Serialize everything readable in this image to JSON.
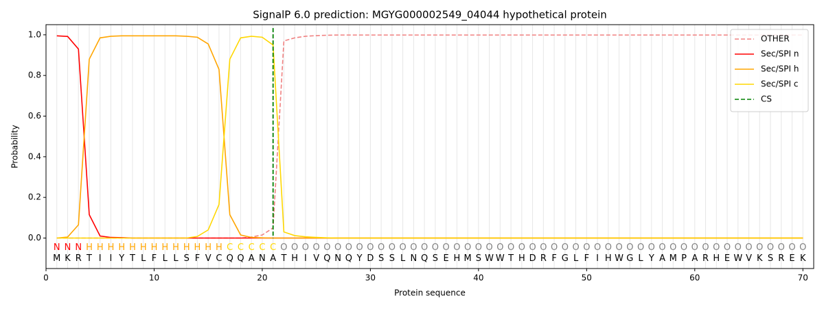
{
  "chart_data": {
    "type": "line",
    "title": "SignalP 6.0 prediction: MGYG000002549_04044 hypothetical protein",
    "x_label": "Protein sequence",
    "y_label": "Probability",
    "xlim": [
      0,
      71
    ],
    "ylim": [
      -0.15,
      1.05
    ],
    "xticks": [
      0,
      10,
      20,
      30,
      40,
      50,
      60,
      70
    ],
    "yticks": [
      {
        "value": 0,
        "label": "0.0"
      },
      {
        "value": 0.2,
        "label": "0.2"
      },
      {
        "value": 0.4,
        "label": "0.4"
      },
      {
        "value": 0.6,
        "label": "0.6"
      },
      {
        "value": 0.8,
        "label": "0.8"
      },
      {
        "value": 1,
        "label": "1.0"
      }
    ],
    "grid": true,
    "legend": "upper right",
    "x": [
      1,
      2,
      3,
      4,
      5,
      6,
      7,
      8,
      9,
      10,
      11,
      12,
      13,
      14,
      15,
      16,
      17,
      18,
      19,
      20,
      21,
      22,
      23,
      24,
      25,
      26,
      27,
      28,
      29,
      30,
      31,
      32,
      33,
      34,
      35,
      36,
      37,
      38,
      39,
      40,
      41,
      42,
      43,
      44,
      45,
      46,
      47,
      48,
      49,
      50,
      51,
      52,
      53,
      54,
      55,
      56,
      57,
      58,
      59,
      60,
      61,
      62,
      63,
      64,
      65,
      66,
      67,
      68,
      69,
      70
    ],
    "residues": [
      "M",
      "K",
      "R",
      "T",
      "I",
      "I",
      "Y",
      "T",
      "L",
      "F",
      "L",
      "L",
      "S",
      "F",
      "V",
      "C",
      "Q",
      "Q",
      "A",
      "N",
      "A",
      "T",
      "H",
      "I",
      "V",
      "Q",
      "N",
      "Q",
      "Y",
      "D",
      "S",
      "S",
      "L",
      "N",
      "Q",
      "S",
      "E",
      "H",
      "M",
      "S",
      "W",
      "W",
      "T",
      "H",
      "D",
      "R",
      "F",
      "G",
      "L",
      "F",
      "I",
      "H",
      "W",
      "G",
      "L",
      "Y",
      "A",
      "M",
      "P",
      "A",
      "R",
      "H",
      "E",
      "W",
      "V",
      "K",
      "S",
      "R",
      "E",
      "K"
    ],
    "labels": [
      "N",
      "N",
      "N",
      "H",
      "H",
      "H",
      "H",
      "H",
      "H",
      "H",
      "H",
      "H",
      "H",
      "H",
      "H",
      "H",
      "C",
      "C",
      "C",
      "C",
      "C",
      "O",
      "O",
      "O",
      "O",
      "O",
      "O",
      "O",
      "O",
      "O",
      "O",
      "O",
      "O",
      "O",
      "O",
      "O",
      "O",
      "O",
      "O",
      "O",
      "O",
      "O",
      "O",
      "O",
      "O",
      "O",
      "O",
      "O",
      "O",
      "O",
      "O",
      "O",
      "O",
      "O",
      "O",
      "O",
      "O",
      "O",
      "O",
      "O",
      "O",
      "O",
      "O",
      "O",
      "O",
      "O",
      "O",
      "O",
      "O",
      "O"
    ],
    "label_colors": {
      "N": "#ff0000",
      "H": "#ffa500",
      "C": "#ffd700",
      "O": "#808080"
    },
    "series": [
      {
        "name": "OTHER",
        "color": "#f08080",
        "dash": true,
        "values": [
          0,
          0,
          0,
          0,
          0,
          0,
          0,
          0,
          0,
          0,
          0,
          0,
          0,
          0,
          0,
          0,
          0,
          0,
          0.005,
          0.015,
          0.05,
          0.97,
          0.985,
          0.993,
          0.996,
          0.998,
          0.999,
          0.999,
          0.999,
          0.999,
          0.999,
          0.999,
          0.999,
          0.999,
          0.999,
          0.999,
          0.999,
          0.999,
          0.999,
          0.999,
          0.999,
          0.999,
          0.999,
          0.999,
          0.999,
          0.999,
          0.999,
          0.999,
          0.999,
          0.999,
          0.999,
          0.999,
          0.999,
          0.999,
          0.999,
          0.999,
          0.999,
          0.999,
          0.999,
          0.999,
          0.999,
          0.999,
          0.999,
          0.999,
          0.999,
          0.999,
          0.999,
          0.999,
          0.999,
          0.999
        ]
      },
      {
        "name": "Sec/SPI n",
        "color": "#ff0000",
        "dash": false,
        "values": [
          0.995,
          0.992,
          0.93,
          0.115,
          0.01,
          0.003,
          0.002,
          0,
          0,
          0,
          0,
          0,
          0,
          0,
          0,
          0,
          0,
          0,
          0,
          0,
          0,
          0,
          0,
          0,
          0,
          0,
          0,
          0,
          0,
          0,
          0,
          0,
          0,
          0,
          0,
          0,
          0,
          0,
          0,
          0,
          0,
          0,
          0,
          0,
          0,
          0,
          0,
          0,
          0,
          0,
          0,
          0,
          0,
          0,
          0,
          0,
          0,
          0,
          0,
          0,
          0,
          0,
          0,
          0,
          0,
          0,
          0,
          0,
          0,
          0
        ]
      },
      {
        "name": "Sec/SPI h",
        "color": "#ffa500",
        "dash": false,
        "values": [
          0,
          0.005,
          0.065,
          0.88,
          0.985,
          0.993,
          0.995,
          0.995,
          0.995,
          0.995,
          0.995,
          0.995,
          0.993,
          0.988,
          0.955,
          0.83,
          0.115,
          0.015,
          0.003,
          0.001,
          0,
          0,
          0,
          0,
          0,
          0,
          0,
          0,
          0,
          0,
          0,
          0,
          0,
          0,
          0,
          0,
          0,
          0,
          0,
          0,
          0,
          0,
          0,
          0,
          0,
          0,
          0,
          0,
          0,
          0,
          0,
          0,
          0,
          0,
          0,
          0,
          0,
          0,
          0,
          0,
          0,
          0,
          0,
          0,
          0,
          0,
          0,
          0,
          0,
          0
        ]
      },
      {
        "name": "Sec/SPI c",
        "color": "#ffd700",
        "dash": false,
        "values": [
          0,
          0,
          0,
          0,
          0,
          0,
          0,
          0,
          0,
          0,
          0,
          0,
          0,
          0.008,
          0.04,
          0.165,
          0.88,
          0.985,
          0.993,
          0.988,
          0.95,
          0.03,
          0.012,
          0.006,
          0.003,
          0.001,
          0,
          0,
          0,
          0,
          0,
          0,
          0,
          0,
          0,
          0,
          0,
          0,
          0,
          0,
          0,
          0,
          0,
          0,
          0,
          0,
          0,
          0,
          0,
          0,
          0,
          0,
          0,
          0,
          0,
          0,
          0,
          0,
          0,
          0,
          0,
          0,
          0,
          0,
          0,
          0,
          0,
          0,
          0,
          0
        ]
      }
    ],
    "markers": [
      {
        "name": "CS",
        "x": 21,
        "color": "#008000"
      }
    ]
  }
}
